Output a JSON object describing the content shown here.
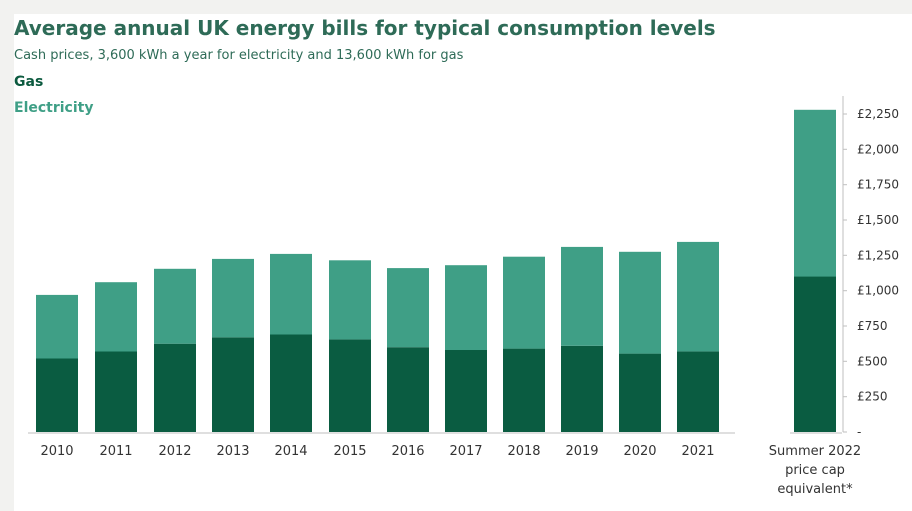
{
  "chart_data": {
    "type": "bar",
    "stacked": true,
    "title": "Average annual UK energy bills for typical consumption levels",
    "subtitle": "Cash prices, 3,600 kWh a year for electricity and 13,600 kWh for gas",
    "categories": [
      "2010",
      "2011",
      "2012",
      "2013",
      "2014",
      "2015",
      "2016",
      "2017",
      "2018",
      "2019",
      "2020",
      "2021",
      "Summer 2022 price cap equivalent*"
    ],
    "series": [
      {
        "name": "Gas",
        "color": "#0a5c41",
        "values": [
          520,
          570,
          625,
          670,
          690,
          655,
          600,
          580,
          590,
          610,
          555,
          570,
          1100
        ]
      },
      {
        "name": "Electricity",
        "color": "#3f9f86",
        "values": [
          450,
          490,
          530,
          555,
          570,
          560,
          560,
          600,
          650,
          700,
          720,
          775,
          1180
        ]
      }
    ],
    "y_ticks": [
      "-",
      "£250",
      "£500",
      "£750",
      "£1,000",
      "£1,250",
      "£1,500",
      "£1,750",
      "£2,000",
      "£2,250"
    ],
    "ylim": [
      0,
      2250
    ],
    "legend_position": "top-left",
    "grid": false
  }
}
